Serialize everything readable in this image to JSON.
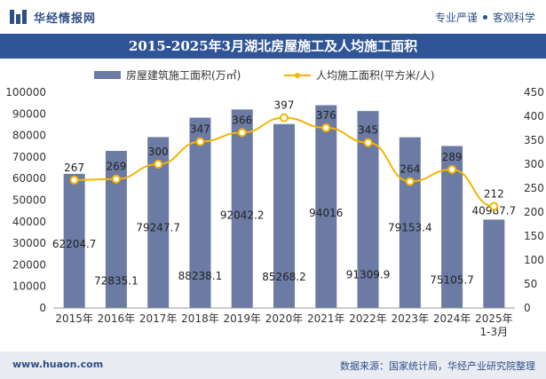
{
  "header": {
    "brand": "华经情报网",
    "tagline_left": "专业严谨",
    "tagline_right": "客观科学"
  },
  "footer": {
    "site": "www.huaon.com",
    "source": "数据来源：国家统计局，华经产业研究院整理"
  },
  "colors": {
    "bar": "#6b7ba3",
    "line": "#f5b400",
    "title_bg": "#2f5597",
    "brand": "#2d4f86"
  },
  "chart_data": {
    "type": "bar",
    "title": "2015-2025年3月湖北房屋施工及人均施工面积",
    "categories": [
      "2015年",
      "2016年",
      "2017年",
      "2018年",
      "2019年",
      "2020年",
      "2021年",
      "2022年",
      "2023年",
      "2024年",
      "2025年\n1-3月"
    ],
    "series": [
      {
        "name": "房屋建筑施工面积(万㎡)",
        "type": "bar",
        "axis": "left",
        "values": [
          62204.7,
          72835.1,
          79247.7,
          88238.1,
          92042.2,
          85268.2,
          94016,
          91309.9,
          79153.4,
          75105.7,
          40987.7
        ],
        "labels": [
          "62204.7",
          "72835.1",
          "79247.7",
          "88238.1",
          "92042.2",
          "85268.2",
          "94016",
          "91309.9",
          "79153.4",
          "75105.7",
          "40987.7"
        ]
      },
      {
        "name": "人均施工面积(平方米/人)",
        "type": "line",
        "axis": "right",
        "values": [
          267,
          269,
          300,
          347,
          366,
          397,
          376,
          345,
          264,
          289,
          212
        ],
        "labels": [
          "267",
          "269",
          "300",
          "347",
          "366",
          "397",
          "376",
          "345",
          "264",
          "289",
          "212"
        ]
      }
    ],
    "y_left": {
      "min": 0,
      "max": 100000,
      "ticks": [
        0,
        10000,
        20000,
        30000,
        40000,
        50000,
        60000,
        70000,
        80000,
        90000,
        100000
      ]
    },
    "y_right": {
      "min": 0,
      "max": 450,
      "ticks": [
        0,
        50,
        100,
        150,
        200,
        250,
        300,
        350,
        400,
        450
      ]
    },
    "grid": false,
    "legend_position": "top-center"
  }
}
